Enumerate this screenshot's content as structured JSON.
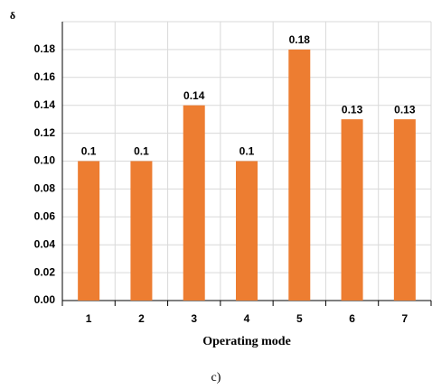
{
  "chart_data": {
    "type": "bar",
    "y_label": "δ",
    "x_label": "Operating mode",
    "caption": "c)",
    "categories": [
      "1",
      "2",
      "3",
      "4",
      "5",
      "6",
      "7"
    ],
    "values": [
      0.1,
      0.1,
      0.14,
      0.1,
      0.18,
      0.13,
      0.13
    ],
    "color": "#ed7d31",
    "ylim": [
      0,
      0.2
    ],
    "yticks": [
      {
        "value": 0,
        "label": "0.00"
      },
      {
        "value": 0.02,
        "label": "0.02"
      },
      {
        "value": 0.04,
        "label": "0.04"
      },
      {
        "value": 0.06,
        "label": "0.06"
      },
      {
        "value": 0.08,
        "label": "0.08"
      },
      {
        "value": 0.1,
        "label": "0.10"
      },
      {
        "value": 0.12,
        "label": "0.12"
      },
      {
        "value": 0.14,
        "label": "0.14"
      },
      {
        "value": 0.16,
        "label": "0.16"
      },
      {
        "value": 0.18,
        "label": "0.18"
      }
    ],
    "grid": true
  }
}
